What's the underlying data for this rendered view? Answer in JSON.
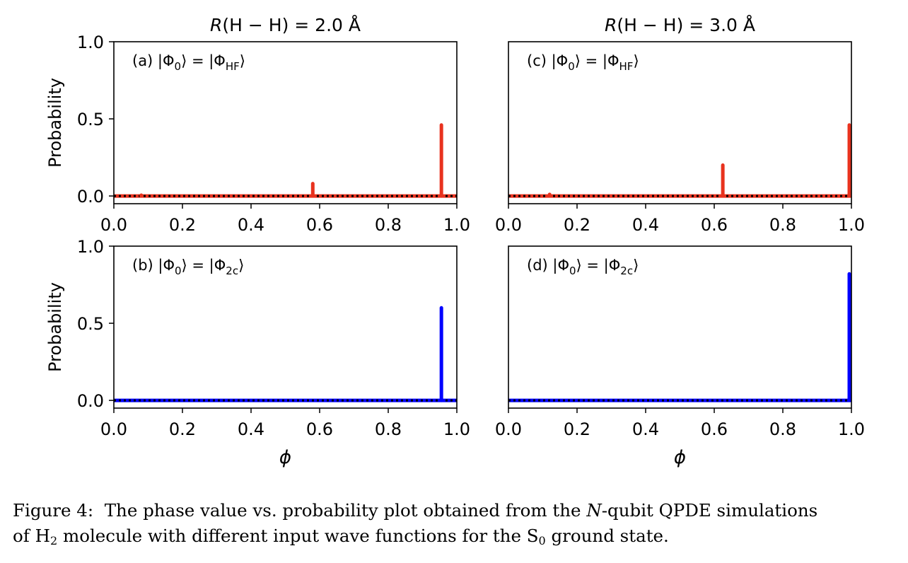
{
  "colors": {
    "hf": "#e8321e",
    "twoc": "#0000ff",
    "baseline": "#000000"
  },
  "column_titles": [
    "R(H − H) = 2.0 Å",
    "R(H − H) = 3.0 Å"
  ],
  "ylabel": "Probability",
  "xlabel": "ϕ",
  "chart_data": [
    {
      "type": "bar",
      "panel": "(a)",
      "title": "R(H − H) = 2.0 Å",
      "annotation": {
        "label": "(a)",
        "phi_sub": "0",
        "rhs_sub": "HF"
      },
      "series": [
        {
          "values_x": [
            0.08,
            0.58,
            0.955
          ],
          "values_y": [
            0.005,
            0.08,
            0.46
          ],
          "color": "#e8321e"
        }
      ],
      "xlim": [
        0.0,
        1.0
      ],
      "ylim": [
        -0.05,
        1.0
      ],
      "xticks": [
        "0.0",
        "0.2",
        "0.4",
        "0.6",
        "0.8",
        "1.0"
      ],
      "yticks": [
        "0.0",
        "0.5",
        "1.0"
      ],
      "ylabel": "Probability",
      "xlabel": ""
    },
    {
      "type": "bar",
      "panel": "(b)",
      "annotation": {
        "label": "(b)",
        "phi_sub": "0",
        "rhs_sub": "2c"
      },
      "series": [
        {
          "values_x": [
            0.955
          ],
          "values_y": [
            0.6
          ],
          "color": "#0000ff"
        }
      ],
      "xlim": [
        0.0,
        1.0
      ],
      "ylim": [
        -0.05,
        1.0
      ],
      "xticks": [
        "0.0",
        "0.2",
        "0.4",
        "0.6",
        "0.8",
        "1.0"
      ],
      "yticks": [
        "0.0",
        "0.5",
        "1.0"
      ],
      "ylabel": "Probability",
      "xlabel": "ϕ"
    },
    {
      "type": "bar",
      "panel": "(c)",
      "title": "R(H − H) = 3.0 Å",
      "annotation": {
        "label": "(c)",
        "phi_sub": "0",
        "rhs_sub": "HF"
      },
      "series": [
        {
          "values_x": [
            0.12,
            0.625,
            1.0
          ],
          "values_y": [
            0.01,
            0.2,
            0.46
          ],
          "color": "#e8321e"
        }
      ],
      "xlim": [
        0.0,
        1.0
      ],
      "ylim": [
        -0.05,
        1.0
      ],
      "xticks": [
        "0.0",
        "0.2",
        "0.4",
        "0.6",
        "0.8",
        "1.0"
      ],
      "yticks": [],
      "ylabel": "",
      "xlabel": ""
    },
    {
      "type": "bar",
      "panel": "(d)",
      "annotation": {
        "label": "(d)",
        "phi_sub": "0",
        "rhs_sub": "2c"
      },
      "series": [
        {
          "values_x": [
            1.0
          ],
          "values_y": [
            0.82
          ],
          "color": "#0000ff"
        }
      ],
      "xlim": [
        0.0,
        1.0
      ],
      "ylim": [
        -0.05,
        1.0
      ],
      "xticks": [
        "0.0",
        "0.2",
        "0.4",
        "0.6",
        "0.8",
        "1.0"
      ],
      "yticks": [],
      "ylabel": "",
      "xlabel": "ϕ"
    }
  ],
  "caption": {
    "prefix": "Figure 4:",
    "line1_a": "The phase value vs. probability plot obtained from the ",
    "line1_n": "N",
    "line1_b": "-qubit QPDE simulations",
    "line2_a": "of H",
    "line2_sub1": "2",
    "line2_b": " molecule with different input wave functions for the S",
    "line2_sub2": "0",
    "line2_c": " ground state."
  }
}
